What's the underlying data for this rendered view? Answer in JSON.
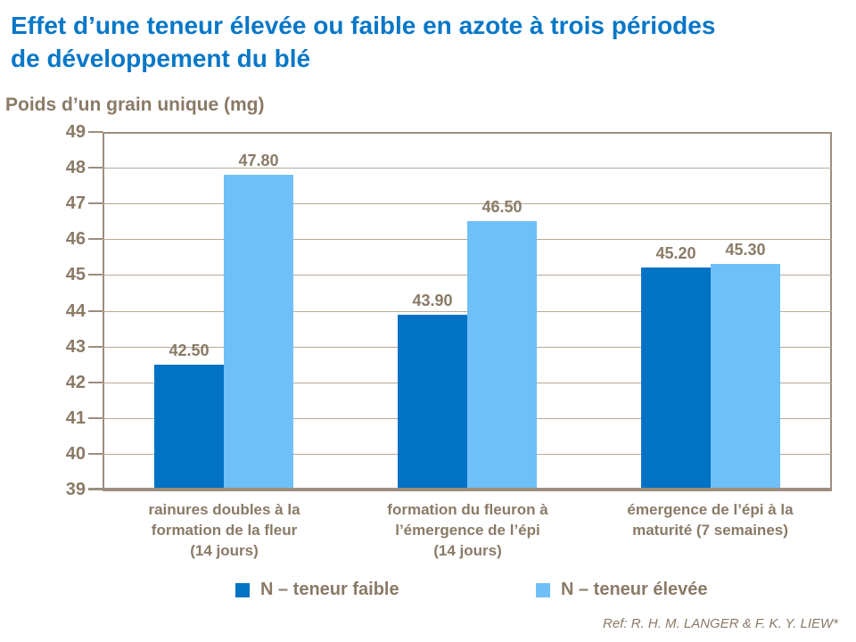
{
  "title": {
    "line1": "Effet d’une teneur élevée ou faible en azote à trois périodes",
    "line2": "de développement du blé"
  },
  "reference": "Ref: R. H. M. LANGER & F. K. Y. LIEW*",
  "colors": {
    "title_blue": "#0877C8",
    "text_brown": "#8A7A66",
    "gridline": "#B7A999",
    "axis": "#9C8E7D",
    "series_faible": "#0272C4",
    "series_elevee": "#6FC0F8"
  },
  "chart_data": {
    "type": "bar",
    "title": "",
    "ylabel": "Poids d’un grain unique (mg)",
    "xlabel": "",
    "ylim": [
      39,
      49
    ],
    "y_ticks": [
      39,
      40,
      41,
      42,
      43,
      44,
      45,
      46,
      47,
      48,
      49
    ],
    "grid": true,
    "legend_position": "bottom",
    "categories": [
      "rainures doubles à la\nformation de la fleur\n(14 jours)",
      "formation du fleuron à\nl’émergence de l’épi\n(14 jours)",
      "émergence de l’épi à la\nmaturité (7 semaines)"
    ],
    "series": [
      {
        "name": "N – teneur faible",
        "values": [
          42.5,
          43.9,
          45.2
        ]
      },
      {
        "name": "N – teneur élevée",
        "values": [
          47.8,
          46.5,
          45.3
        ]
      }
    ],
    "value_label_decimals": 2
  }
}
